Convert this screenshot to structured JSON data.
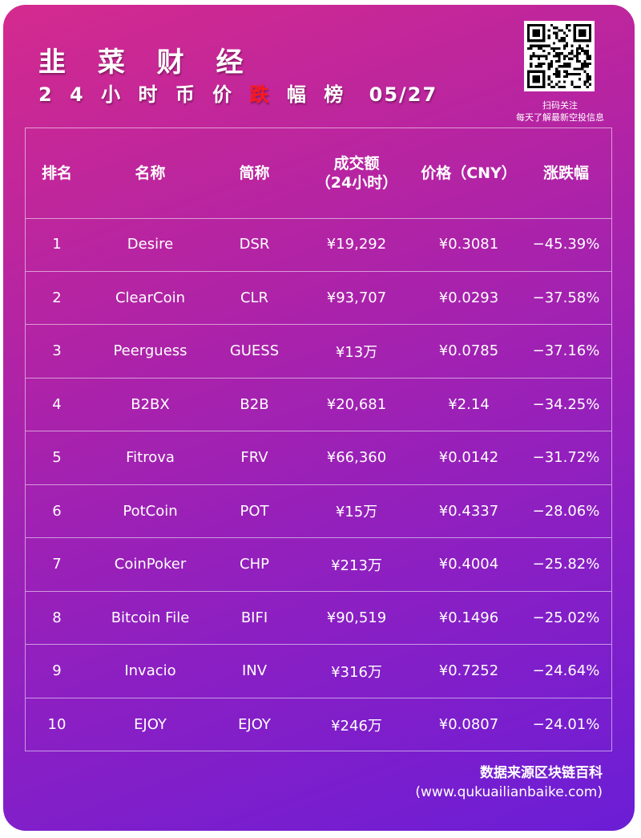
{
  "header": {
    "brand": "韭 菜 财 经",
    "subtitle_prefix": "2 4 小 时 币 价",
    "subtitle_highlight": "跌",
    "subtitle_suffix": "幅 榜",
    "date": "05/27",
    "highlight_color": "#ff1a1a"
  },
  "qr": {
    "caption_line1": "扫码关注",
    "caption_line2": "每天了解最新空投信息"
  },
  "table": {
    "columns": [
      {
        "label": "排名"
      },
      {
        "label": "名称"
      },
      {
        "label": "简称"
      },
      {
        "label_line1": "成交额",
        "label_line2": "（24小时）"
      },
      {
        "label": "价格（CNY）"
      },
      {
        "label": "涨跌幅"
      }
    ],
    "rows": [
      {
        "rank": "1",
        "name": "Desire",
        "symbol": "DSR",
        "volume": "¥19,292",
        "price": "¥0.3081",
        "change": "−45.39%"
      },
      {
        "rank": "2",
        "name": "ClearCoin",
        "symbol": "CLR",
        "volume": "¥93,707",
        "price": "¥0.0293",
        "change": "−37.58%"
      },
      {
        "rank": "3",
        "name": "Peerguess",
        "symbol": "GUESS",
        "volume": "¥13万",
        "price": "¥0.0785",
        "change": "−37.16%"
      },
      {
        "rank": "4",
        "name": "B2BX",
        "symbol": "B2B",
        "volume": "¥20,681",
        "price": "¥2.14",
        "change": "−34.25%"
      },
      {
        "rank": "5",
        "name": "Fitrova",
        "symbol": "FRV",
        "volume": "¥66,360",
        "price": "¥0.0142",
        "change": "−31.72%"
      },
      {
        "rank": "6",
        "name": "PotCoin",
        "symbol": "POT",
        "volume": "¥15万",
        "price": "¥0.4337",
        "change": "−28.06%"
      },
      {
        "rank": "7",
        "name": "CoinPoker",
        "symbol": "CHP",
        "volume": "¥213万",
        "price": "¥0.4004",
        "change": "−25.82%"
      },
      {
        "rank": "8",
        "name": "Bitcoin File",
        "symbol": "BIFI",
        "volume": "¥90,519",
        "price": "¥0.1496",
        "change": "−25.02%"
      },
      {
        "rank": "9",
        "name": "Invacio",
        "symbol": "INV",
        "volume": "¥316万",
        "price": "¥0.7252",
        "change": "−24.64%"
      },
      {
        "rank": "10",
        "name": "EJOY",
        "symbol": "EJOY",
        "volume": "¥246万",
        "price": "¥0.0807",
        "change": "−24.01%"
      }
    ]
  },
  "footer": {
    "source": "数据来源区块链百科",
    "url": "(www.qukuailianbaike.com)"
  }
}
